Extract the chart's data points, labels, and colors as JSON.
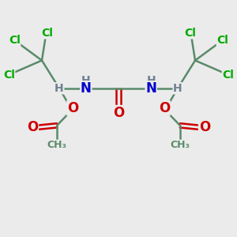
{
  "bg_color": "#ebebeb",
  "bond_color": "#5a8a6a",
  "bond_width": 1.8,
  "atom_colors": {
    "C": "#5a8a6a",
    "Cl": "#00aa00",
    "N": "#0000cc",
    "O": "#cc0000",
    "H": "#708090"
  },
  "fig_width": 3.0,
  "fig_height": 3.0,
  "dpi": 100
}
